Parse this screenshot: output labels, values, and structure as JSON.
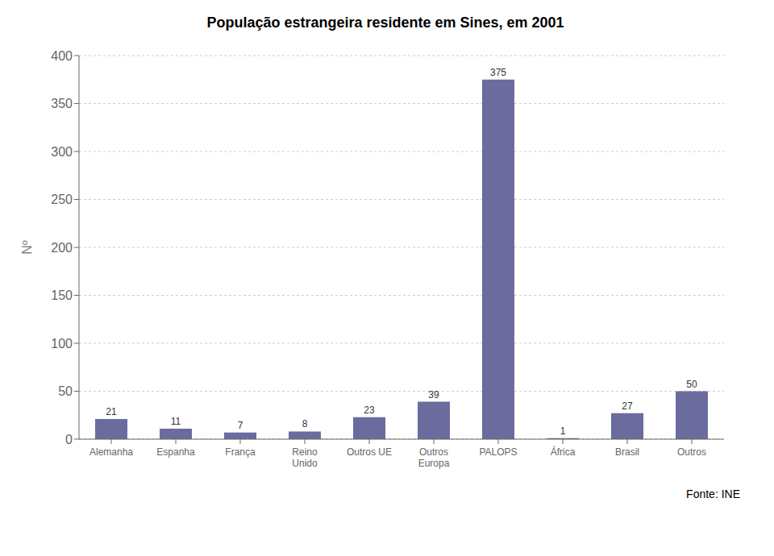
{
  "chart_data": {
    "type": "bar",
    "title": "População estrangeira residente em Sines, em 2001",
    "categories": [
      "Alemanha",
      "Espanha",
      "França",
      "Reino\nUnido",
      "Outros UE",
      "Outros\nEuropa",
      "PALOPS",
      "África",
      "Brasil",
      "Outros"
    ],
    "values": [
      21,
      11,
      7,
      8,
      23,
      39,
      375,
      1,
      27,
      50
    ],
    "color": "#6b6b9e",
    "ylabel": "Nº",
    "ylim": [
      0,
      400
    ],
    "yticks": [
      0,
      50,
      100,
      150,
      200,
      250,
      300,
      350,
      400
    ],
    "grid": true,
    "data_labels": true,
    "annotations": [
      "Fonte: INE"
    ]
  }
}
